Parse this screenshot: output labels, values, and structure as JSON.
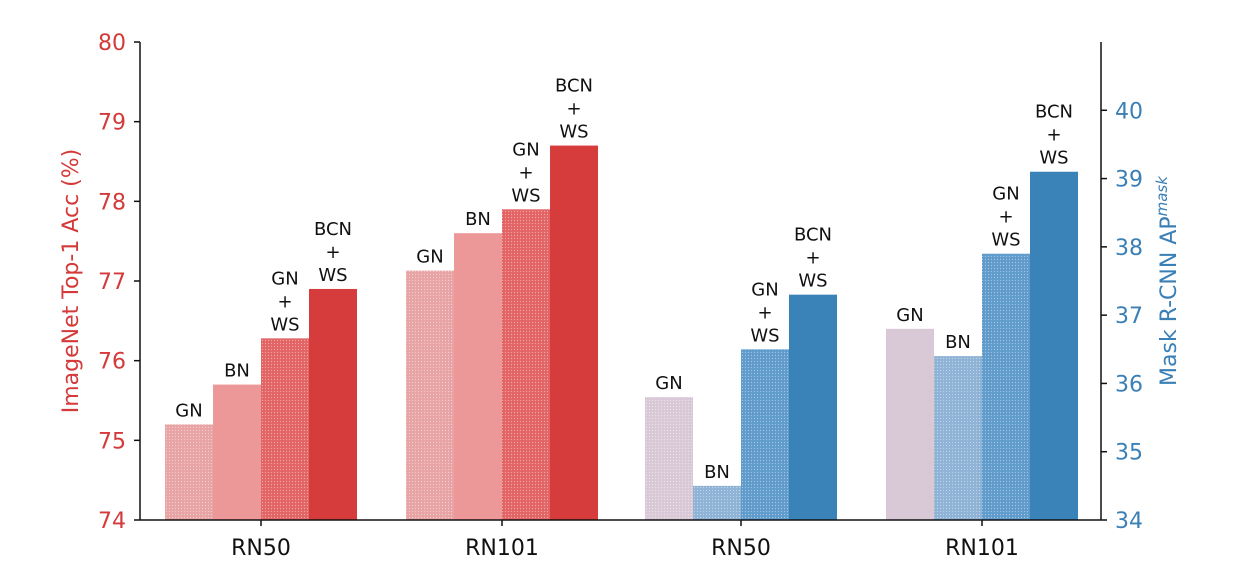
{
  "chart_data": {
    "type": "bar",
    "categories": [
      "RN50",
      "RN101",
      "RN50",
      "RN101"
    ],
    "left_axis": {
      "label": "ImageNet Top-1 Acc (%)",
      "ylim": [
        74,
        80
      ],
      "ticks": [
        74,
        75,
        76,
        77,
        78,
        79,
        80
      ],
      "color": "#d43a3a"
    },
    "right_axis": {
      "label": "Mask R-CNN AP",
      "label_superscript": "mask",
      "ylim": [
        34,
        41
      ],
      "ticks": [
        34,
        35,
        36,
        37,
        38,
        39,
        40
      ],
      "color": "#3a7fb5"
    },
    "groups": [
      {
        "category": "RN50",
        "axis": "left",
        "bars": [
          {
            "label": [
              "GN"
            ],
            "value": 75.2,
            "color": "#e8a4a4",
            "hatched": true
          },
          {
            "label": [
              "BN"
            ],
            "value": 75.7,
            "color": "#ec9898",
            "hatched": false
          },
          {
            "label": [
              "GN",
              "+",
              "WS"
            ],
            "value": 76.28,
            "color": "#e36464",
            "hatched": true
          },
          {
            "label": [
              "BCN",
              "+",
              "WS"
            ],
            "value": 76.9,
            "color": "#d63c3c",
            "hatched": false
          }
        ]
      },
      {
        "category": "RN101",
        "axis": "left",
        "bars": [
          {
            "label": [
              "GN"
            ],
            "value": 77.13,
            "color": "#e8a4a4",
            "hatched": true
          },
          {
            "label": [
              "BN"
            ],
            "value": 77.6,
            "color": "#ec9898",
            "hatched": false
          },
          {
            "label": [
              "GN",
              "+",
              "WS"
            ],
            "value": 77.9,
            "color": "#e36464",
            "hatched": true
          },
          {
            "label": [
              "BCN",
              "+",
              "WS"
            ],
            "value": 78.7,
            "color": "#d63c3c",
            "hatched": false
          }
        ]
      },
      {
        "category": "RN50",
        "axis": "right",
        "bars": [
          {
            "label": [
              "GN"
            ],
            "value": 35.8,
            "color": "#d9c9d6",
            "hatched": true
          },
          {
            "label": [
              "BN"
            ],
            "value": 34.5,
            "color": "#8fb3d6",
            "hatched": true
          },
          {
            "label": [
              "GN",
              "+",
              "WS"
            ],
            "value": 36.5,
            "color": "#5f9bcb",
            "hatched": true
          },
          {
            "label": [
              "BCN",
              "+",
              "WS"
            ],
            "value": 37.3,
            "color": "#3a83b8",
            "hatched": false
          }
        ]
      },
      {
        "category": "RN101",
        "axis": "right",
        "bars": [
          {
            "label": [
              "GN"
            ],
            "value": 36.8,
            "color": "#d9c9d6",
            "hatched": false
          },
          {
            "label": [
              "BN"
            ],
            "value": 36.4,
            "color": "#8fb3d6",
            "hatched": true
          },
          {
            "label": [
              "GN",
              "+",
              "WS"
            ],
            "value": 37.9,
            "color": "#5f9bcb",
            "hatched": true
          },
          {
            "label": [
              "BCN",
              "+",
              "WS"
            ],
            "value": 39.1,
            "color": "#3a83b8",
            "hatched": false
          }
        ]
      }
    ],
    "grid": false,
    "legend": "none"
  }
}
